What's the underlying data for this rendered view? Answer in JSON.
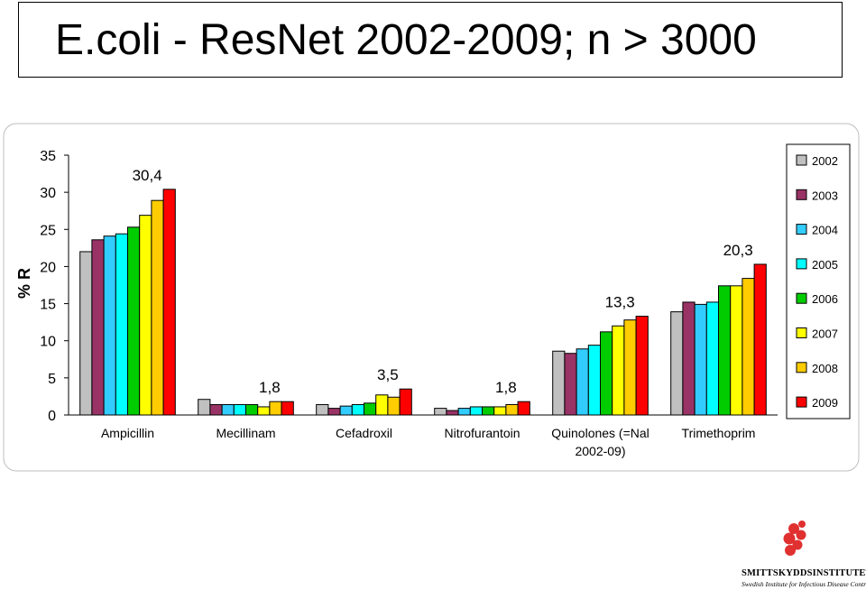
{
  "title": "E.coli - ResNet 2002-2009; n > 3000",
  "chart_data": {
    "type": "bar",
    "ylabel": "% R",
    "ylim": [
      0,
      35
    ],
    "yticks": [
      0,
      5,
      10,
      15,
      20,
      25,
      30,
      35
    ],
    "grid": false,
    "legend_position": "right",
    "categories": [
      "Ampicillin",
      "Mecillinam",
      "Cefadroxil",
      "Nitrofurantoin",
      "Quinolones  (=Nal 2002-09)",
      "Trimethoprim"
    ],
    "series": [
      {
        "name": "2002",
        "color": "#c0c0c0",
        "values": [
          22.0,
          2.1,
          1.4,
          0.9,
          8.6,
          13.9
        ]
      },
      {
        "name": "2003",
        "color": "#993366",
        "values": [
          23.6,
          1.4,
          0.9,
          0.6,
          8.3,
          15.2
        ]
      },
      {
        "name": "2004",
        "color": "#33ccff",
        "values": [
          24.1,
          1.4,
          1.2,
          0.9,
          8.9,
          14.9
        ]
      },
      {
        "name": "2005",
        "color": "#00ffff",
        "values": [
          24.4,
          1.4,
          1.4,
          1.1,
          9.4,
          15.2
        ]
      },
      {
        "name": "2006",
        "color": "#00cc00",
        "values": [
          25.3,
          1.4,
          1.6,
          1.1,
          11.2,
          17.4
        ]
      },
      {
        "name": "2007",
        "color": "#ffff00",
        "values": [
          26.9,
          1.1,
          2.7,
          1.1,
          12.0,
          17.4
        ]
      },
      {
        "name": "2008",
        "color": "#ffcc00",
        "values": [
          28.9,
          1.8,
          2.4,
          1.4,
          12.8,
          18.4
        ]
      },
      {
        "name": "2009",
        "color": "#ff0000",
        "values": [
          30.4,
          1.8,
          3.5,
          1.8,
          13.3,
          20.3
        ]
      }
    ],
    "annotations": [
      "30,4",
      "1,8",
      "3,5",
      "1,8",
      "13,3",
      "20,3"
    ]
  },
  "logo": {
    "name": "SMITTSKYDDSINSTITUTET",
    "subtitle": "Swedish Institute for Infectious Disease Control"
  }
}
